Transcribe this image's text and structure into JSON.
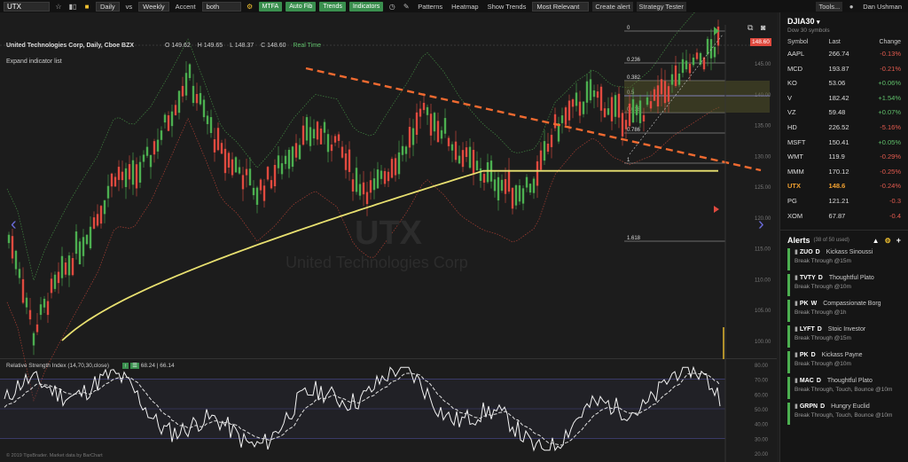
{
  "toolbar": {
    "symbol": "UTX",
    "interval": "Daily",
    "vs_label": "vs",
    "compare_interval": "Weekly",
    "accent_label": "Accent",
    "accent_value": "both",
    "mtfa": "MTFA",
    "auto_fib": "Auto Fib",
    "trends": "Trends",
    "indicators": "Indicators",
    "patterns": "Patterns",
    "heatmap": "Heatmap",
    "show_trends": "Show Trends",
    "most_relevant": "Most Relevant",
    "create_alert": "Create alert",
    "strategy_tester": "Strategy Tester",
    "tools": "Tools...",
    "user": "Dan Ushman"
  },
  "chart": {
    "title": "United Technologies Corp, Daily, Cboe BZX",
    "o": "O 149.62",
    "h": "H 149.65",
    "l": "L 148.37",
    "c": "C 148.60",
    "realtime": "Real Time",
    "expand": "Expand indicator list",
    "watermark_symbol": "UTX",
    "watermark_name": "United Technologies Corp",
    "last_price": "148.60",
    "rsi_label": "Relative Strength Index (14,70,30,close)",
    "rsi_v1": "68.24",
    "rsi_v2": "66.14",
    "copyright": "© 2019 TipsBrader. Market data by BarChart",
    "fib_levels": [
      "0",
      "0.236",
      "0.382",
      "0.5",
      "0.618",
      "0.786",
      "1",
      "1.618"
    ],
    "price_ticks": [
      "145.00",
      "140.00",
      "135.00",
      "130.00",
      "125.00",
      "120.00",
      "115.00",
      "110.00",
      "105.00",
      "100.00"
    ],
    "rsi_ticks": [
      "80.00",
      "70.00",
      "60.00",
      "50.00",
      "40.00",
      "30.00",
      "20.00"
    ],
    "colors": {
      "up": "#4caf50",
      "down": "#e04a3f",
      "sma": "#e8e070",
      "trend": "#f06a30",
      "fib_zone": "#5a5a2a"
    }
  },
  "sidebar": {
    "list_name": "DJIA30",
    "list_sub": "Dow 30 symbols",
    "col_symbol": "Symbol",
    "col_last": "Last",
    "col_change": "Change",
    "rows": [
      {
        "s": "AAPL",
        "l": "266.74",
        "c": "-0.13%"
      },
      {
        "s": "MCD",
        "l": "193.87",
        "c": "-0.21%"
      },
      {
        "s": "KO",
        "l": "53.06",
        "c": "+0.06%"
      },
      {
        "s": "V",
        "l": "182.42",
        "c": "+1.54%"
      },
      {
        "s": "VZ",
        "l": "59.48",
        "c": "+0.07%"
      },
      {
        "s": "HD",
        "l": "226.52",
        "c": "-5.16%"
      },
      {
        "s": "MSFT",
        "l": "150.41",
        "c": "+0.05%"
      },
      {
        "s": "WMT",
        "l": "119.9",
        "c": "-0.29%"
      },
      {
        "s": "MMM",
        "l": "170.12",
        "c": "-0.25%"
      },
      {
        "s": "UTX",
        "l": "148.6",
        "c": "-0.24%"
      },
      {
        "s": "PG",
        "l": "121.21",
        "c": "-0.3"
      },
      {
        "s": "XOM",
        "l": "67.87",
        "c": "-0.4"
      }
    ],
    "alerts_title": "Alerts",
    "alerts_sub": "(38 of 50 used)",
    "alerts": [
      {
        "sym": "ZUO",
        "tf": "D",
        "name": "Kickass Sinoussi",
        "desc": "Break Through @15m"
      },
      {
        "sym": "TVTY",
        "tf": "D",
        "name": "Thoughtful Plato",
        "desc": "Break Through @10m"
      },
      {
        "sym": "PK",
        "tf": "W",
        "name": "Compassionate Borg",
        "desc": "Break Through @1h"
      },
      {
        "sym": "LYFT",
        "tf": "D",
        "name": "Stoic Investor",
        "desc": "Break Through @15m"
      },
      {
        "sym": "PK",
        "tf": "D",
        "name": "Kickass Payne",
        "desc": "Break Through @10m"
      },
      {
        "sym": "MAC",
        "tf": "D",
        "name": "Thoughtful Plato",
        "desc": "Break Through, Touch, Bounce @10m"
      },
      {
        "sym": "GRPN",
        "tf": "D",
        "name": "Hungry Euclid",
        "desc": "Break Through, Touch, Bounce @10m"
      }
    ]
  }
}
